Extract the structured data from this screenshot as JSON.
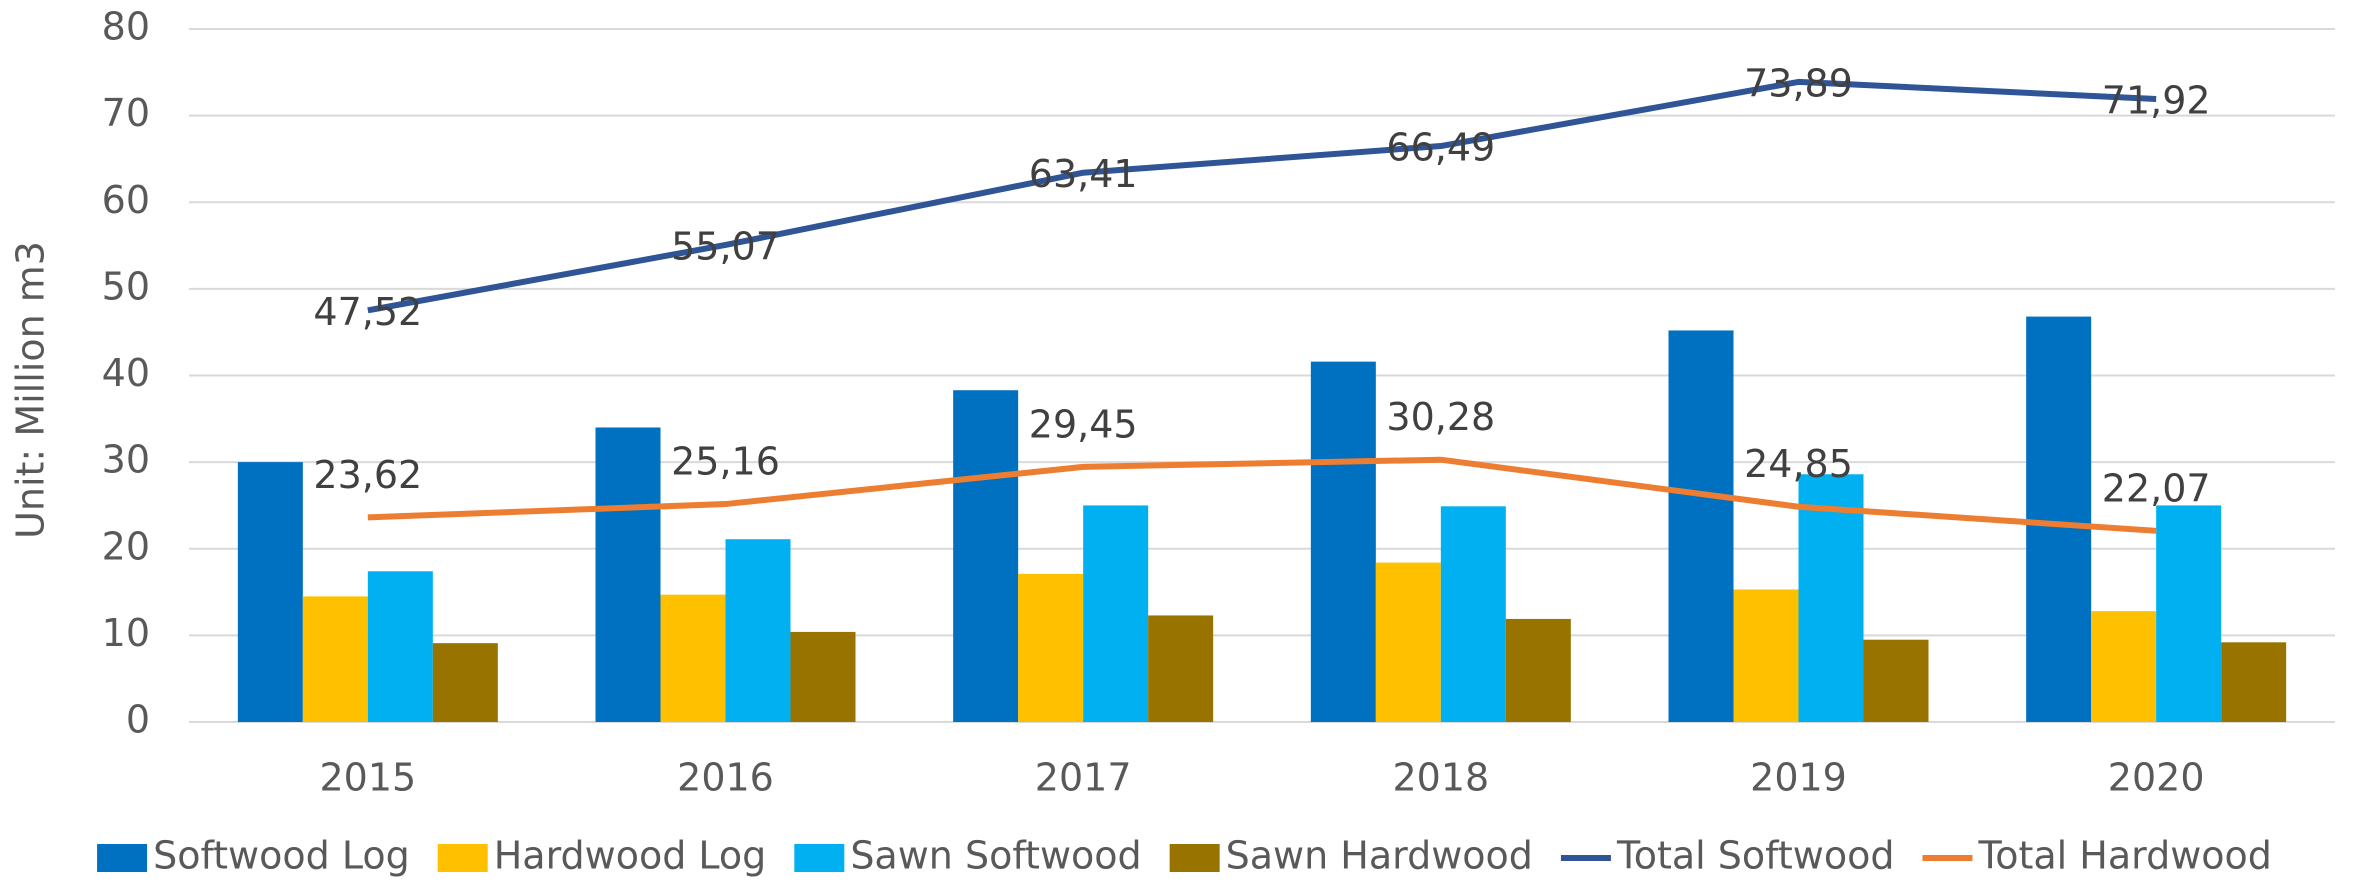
{
  "chart_data": {
    "type": "bar",
    "y_label": "Unit: Million m3",
    "categories": [
      "2015",
      "2016",
      "2017",
      "2018",
      "2019",
      "2020"
    ],
    "series": [
      {
        "name": "Softwood Log",
        "color": "#0070c0",
        "values": [
          30,
          34,
          38.3,
          41.6,
          45.2,
          46.8
        ]
      },
      {
        "name": "Hardwood Log",
        "color": "#ffc000",
        "values": [
          14.5,
          14.7,
          17.1,
          18.4,
          15.3,
          12.8
        ]
      },
      {
        "name": "Sawn Softwood",
        "color": "#00b0f0",
        "values": [
          17.4,
          21.1,
          25,
          24.9,
          28.6,
          25
        ]
      },
      {
        "name": "Sawn Hardwood",
        "color": "#997300",
        "values": [
          9.1,
          10.4,
          12.3,
          11.9,
          9.5,
          9.2
        ]
      },
      {
        "name": "Total Softwood",
        "type": "line",
        "color": "#2f5597",
        "values": [
          47.52,
          55.07,
          63.41,
          66.49,
          73.89,
          71.92
        ],
        "value_labels": [
          "47,52",
          "55,07",
          "63,41",
          "66,49",
          "73,89",
          "71,92"
        ]
      },
      {
        "name": "Total Hardwood",
        "type": "line",
        "color": "#ed7d31",
        "values": [
          23.62,
          25.16,
          29.45,
          30.28,
          24.85,
          22.07
        ],
        "value_labels": [
          "23,62",
          "25,16",
          "29,45",
          "30,28",
          "24,85",
          "22,07"
        ]
      }
    ],
    "ylim": [
      0,
      80
    ],
    "yticks": [
      0,
      10,
      20,
      30,
      40,
      50,
      60,
      70,
      80
    ],
    "grid": true,
    "legend": "bottom"
  }
}
